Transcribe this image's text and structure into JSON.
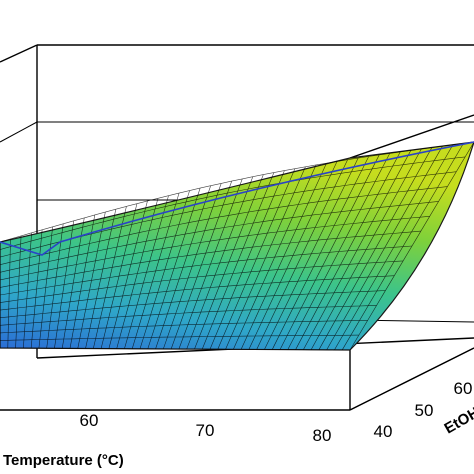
{
  "chart_data": {
    "type": "surface",
    "title": "",
    "xlabel": "Temperature (°C)",
    "ylabel": "EtOH",
    "zlabel": "",
    "x_ticks": [
      "60",
      "70",
      "80"
    ],
    "y_ticks": [
      "40",
      "50",
      "60"
    ],
    "x_range": [
      50,
      80
    ],
    "y_range": [
      40,
      70
    ],
    "grid": true,
    "colormap": [
      "#2b6cd6",
      "#2fa7c9",
      "#3cc48a",
      "#7fd13a",
      "#c6dd1e"
    ],
    "surface_edge_color": "#000000"
  }
}
